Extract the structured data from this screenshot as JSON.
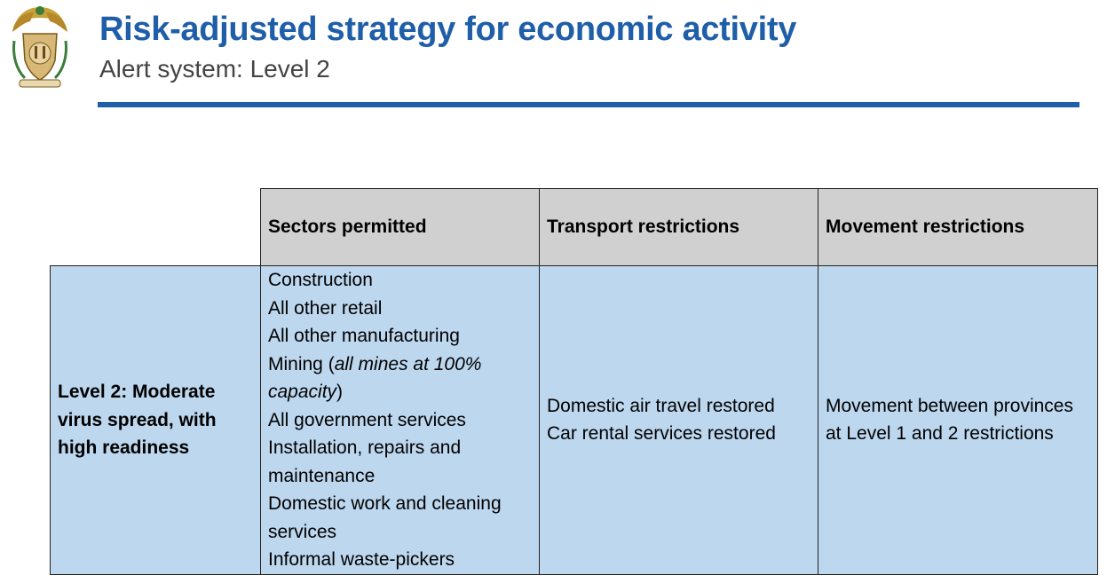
{
  "header": {
    "title": "Risk-adjusted strategy for economic activity",
    "subtitle": "Alert system: Level 2",
    "colors": {
      "title": "#1f5ea8",
      "rule": "#1f5ea8",
      "header_bg": "#d0d0d0",
      "cell_bg": "#bdd7ee"
    },
    "emblem": "south-africa-coat-of-arms-icon"
  },
  "table": {
    "columns": [
      "Sectors permitted",
      "Transport restrictions",
      "Movement restrictions"
    ],
    "row": {
      "level_label": "Level 2: Moderate virus spread, with high readiness",
      "sectors": {
        "construction": "Construction",
        "retail": "All other retail",
        "manufacturing": "All other manufacturing",
        "mining_prefix": "Mining (",
        "mining_italic": "all mines at 100% capacity",
        "mining_suffix": ")",
        "government": "All government services",
        "installation": "Installation, repairs and maintenance",
        "domestic_work": "Domestic work and cleaning services",
        "waste_pickers": "Informal waste-pickers"
      },
      "transport": {
        "air": "Domestic air travel restored",
        "car_rental": "Car rental services restored"
      },
      "movement": "Movement between provinces at Level 1 and 2 restrictions"
    }
  }
}
